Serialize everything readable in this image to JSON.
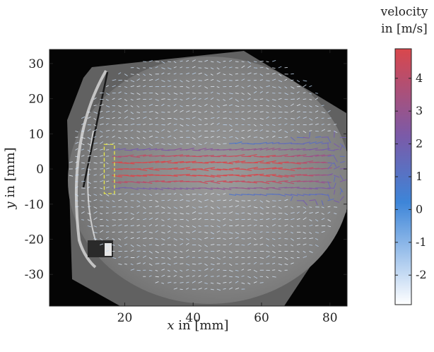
{
  "chart_data": {
    "type": "vector-field",
    "title": "",
    "xlabel": {
      "var": "x",
      "text": " in [mm]"
    },
    "ylabel": {
      "var": "y",
      "text": " in [mm]"
    },
    "xlim": [
      -2,
      85
    ],
    "ylim": [
      -39,
      34
    ],
    "xticks": [
      20,
      40,
      60,
      80
    ],
    "yticks": [
      -30,
      -20,
      -10,
      0,
      10,
      20,
      30
    ],
    "xtick_labels": [
      "20",
      "40",
      "60",
      "80"
    ],
    "ytick_labels": [
      "-30",
      "-20",
      "-10",
      "0",
      "10",
      "20",
      "30"
    ],
    "background": "grayscale particle image of circular window",
    "vector_field": {
      "grid_spacing_mm": 1.8,
      "jet_center_y": 0,
      "jet_half_width": 5,
      "jet_start_x": 16,
      "jet_end_x": 78,
      "max_velocity": 4.8
    },
    "roi_box": {
      "x": [
        14,
        17
      ],
      "y": [
        -7,
        7
      ],
      "color": "#e8e84a"
    },
    "colorbar": {
      "title_lines": [
        "velocity",
        "in [m/s]"
      ],
      "range": [
        -2.9,
        4.9
      ],
      "ticks": [
        4,
        3,
        2,
        1,
        0,
        -1,
        -2
      ],
      "tick_labels": [
        "4",
        "3",
        "2",
        "1",
        "0",
        "-1",
        "-2"
      ],
      "colors": [
        "#ffffff",
        "#3d85d8",
        "#7b5aa8",
        "#d9474c"
      ]
    }
  }
}
